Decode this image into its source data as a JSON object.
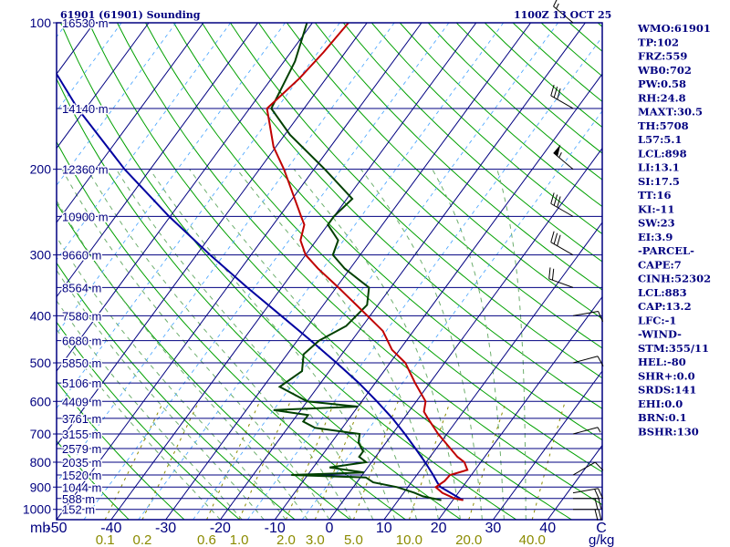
{
  "header": {
    "station": "61901 (61901) Sounding",
    "time": "1100Z 13 OCT 25"
  },
  "indices": [
    "WMO:61901",
    "TP:102",
    "FRZ:559",
    "WB0:702",
    "PW:0.58",
    "RH:24.8",
    "MAXT:30.5",
    "TH:5708",
    "L57:5.1",
    "LCL:898",
    "LI:13.1",
    "SI:17.5",
    "TT:16",
    "KI:-11",
    "SW:23",
    "EI:3.9",
    "-PARCEL-",
    "CAPE:7",
    "CINH:52302",
    "LCL:883",
    "CAP:13.2",
    "LFC:-1",
    "-WIND-",
    "STM:355/11",
    "HEL:-80",
    "SHR+:0.0",
    "SRDS:141",
    "EHI:0.0",
    "BRN:0.1",
    "BSHR:130"
  ],
  "colors": {
    "frame": "#000080",
    "isotherm": "#000080",
    "dry_adiabat": "#00a000",
    "moist_adiabat": "#6cae6c",
    "mixing_ratio": "#8b8b00",
    "temperature": "#c00000",
    "dewpoint": "#004000",
    "parcel": "#0000a0"
  },
  "chart_data": {
    "type": "skew-t log-p",
    "title": "61901 (61901) Sounding",
    "subtitle": "1100Z 13 OCT 25",
    "x_unit_label": "mb",
    "mixing_ratio_unit": "g/kg",
    "pressure_ticks": [
      100,
      200,
      300,
      400,
      500,
      600,
      700,
      800,
      900,
      1000
    ],
    "temperature_ticks": [
      -50,
      -40,
      -30,
      -20,
      -10,
      0,
      10,
      20,
      30,
      40
    ],
    "temperature_ticks_last_label": "C",
    "temperature_range": [
      -50,
      50
    ],
    "pressure_range": [
      100,
      1050
    ],
    "mixing_ratio_labels": [
      {
        "text": "0.1",
        "value": 0.1
      },
      {
        "text": "0.2",
        "value": 0.2
      },
      {
        "text": "0.6",
        "value": 0.6
      },
      {
        "text": "1.0",
        "value": 1.0
      },
      {
        "text": "2.0",
        "value": 2.0
      },
      {
        "text": "3.0",
        "value": 3.0
      },
      {
        "text": "5.0",
        "value": 5.0
      },
      {
        "text": "10.0",
        "value": 10.0
      },
      {
        "text": "20.0",
        "value": 20.0
      },
      {
        "text": "40.0",
        "value": 40.0
      }
    ],
    "height_labels": [
      {
        "p": 100,
        "text": "16530 m"
      },
      {
        "p": 150,
        "text": "14140 m"
      },
      {
        "p": 200,
        "text": "12360 m"
      },
      {
        "p": 250,
        "text": "10900 m"
      },
      {
        "p": 300,
        "text": "9660 m"
      },
      {
        "p": 350,
        "text": "8564 m"
      },
      {
        "p": 400,
        "text": "7580 m"
      },
      {
        "p": 450,
        "text": "6680 m"
      },
      {
        "p": 500,
        "text": "5850 m"
      },
      {
        "p": 550,
        "text": "5106 m"
      },
      {
        "p": 600,
        "text": "4409 m"
      },
      {
        "p": 650,
        "text": "3761 m"
      },
      {
        "p": 700,
        "text": "3155 m"
      },
      {
        "p": 750,
        "text": "2579 m"
      },
      {
        "p": 800,
        "text": "2035 m"
      },
      {
        "p": 850,
        "text": "1520 m"
      },
      {
        "p": 900,
        "text": "1044 m"
      },
      {
        "p": 950,
        "text": "588 m"
      },
      {
        "p": 1000,
        "text": "152 m"
      }
    ],
    "temperature_profile": [
      [
        958,
        21.9
      ],
      [
        950,
        20.1
      ],
      [
        925,
        17.1
      ],
      [
        900,
        15.1
      ],
      [
        875,
        15.9
      ],
      [
        850,
        16.1
      ],
      [
        830,
        18.6
      ],
      [
        800,
        17.0
      ],
      [
        780,
        15.0
      ],
      [
        750,
        12.6
      ],
      [
        700,
        8.4
      ],
      [
        650,
        4.4
      ],
      [
        630,
        2.8
      ],
      [
        600,
        1.7
      ],
      [
        550,
        -2.7
      ],
      [
        500,
        -7.2
      ],
      [
        470,
        -11.4
      ],
      [
        430,
        -15.6
      ],
      [
        400,
        -20.5
      ],
      [
        380,
        -24.0
      ],
      [
        350,
        -29.6
      ],
      [
        320,
        -35.9
      ],
      [
        300,
        -40.0
      ],
      [
        280,
        -42.9
      ],
      [
        260,
        -44.3
      ],
      [
        250,
        -46.0
      ],
      [
        200,
        -55.5
      ],
      [
        180,
        -60.4
      ],
      [
        150,
        -66.8
      ],
      [
        130,
        -64.9
      ],
      [
        115,
        -64.0
      ],
      [
        100,
        -63.4
      ]
    ],
    "dewpoint_profile": [
      [
        958,
        17.9
      ],
      [
        940,
        14.0
      ],
      [
        925,
        12.0
      ],
      [
        900,
        8.0
      ],
      [
        880,
        3.0
      ],
      [
        860,
        1.0
      ],
      [
        850,
        -13.0
      ],
      [
        840,
        0.0
      ],
      [
        820,
        -7.0
      ],
      [
        800,
        -1.0
      ],
      [
        780,
        -3.0
      ],
      [
        760,
        -3.0
      ],
      [
        730,
        -5.0
      ],
      [
        700,
        -6.0
      ],
      [
        680,
        -15.0
      ],
      [
        660,
        -18.0
      ],
      [
        640,
        -18.0
      ],
      [
        625,
        -25.0
      ],
      [
        615,
        -10.0
      ],
      [
        600,
        -20.0
      ],
      [
        560,
        -27.0
      ],
      [
        520,
        -25.0
      ],
      [
        480,
        -27.0
      ],
      [
        450,
        -26.0
      ],
      [
        420,
        -23.0
      ],
      [
        380,
        -22.0
      ],
      [
        350,
        -24.0
      ],
      [
        320,
        -31.0
      ],
      [
        300,
        -35.0
      ],
      [
        280,
        -36.0
      ],
      [
        260,
        -40.0
      ],
      [
        250,
        -40.0
      ],
      [
        230,
        -39.0
      ],
      [
        200,
        -48.0
      ],
      [
        170,
        -59.0
      ],
      [
        150,
        -66.0
      ],
      [
        120,
        -68.0
      ],
      [
        100,
        -71.0
      ]
    ],
    "parcel_profile": [
      [
        958,
        21.9
      ],
      [
        900,
        16.0
      ],
      [
        883,
        14.9
      ],
      [
        850,
        13.0
      ],
      [
        800,
        9.8
      ],
      [
        750,
        6.2
      ],
      [
        700,
        2.3
      ],
      [
        650,
        -2.1
      ],
      [
        600,
        -7.2
      ],
      [
        550,
        -13.0
      ],
      [
        500,
        -19.8
      ],
      [
        450,
        -27.5
      ],
      [
        400,
        -36.3
      ],
      [
        350,
        -46.3
      ],
      [
        300,
        -57.5
      ],
      [
        250,
        -70.2
      ],
      [
        200,
        -84.7
      ],
      [
        150,
        -101.5
      ],
      [
        125,
        -111.0
      ]
    ],
    "wind_barbs": [
      {
        "p": 1000,
        "dir": 90,
        "spd": 20
      },
      {
        "p": 950,
        "dir": 90,
        "spd": 20
      },
      {
        "p": 925,
        "dir": 80,
        "spd": 20
      },
      {
        "p": 850,
        "dir": 60,
        "spd": 10
      },
      {
        "p": 700,
        "dir": 75,
        "spd": 5
      },
      {
        "p": 500,
        "dir": 75,
        "spd": 10
      },
      {
        "p": 400,
        "dir": 80,
        "spd": 10
      },
      {
        "p": 350,
        "dir": 290,
        "spd": 20
      },
      {
        "p": 300,
        "dir": 300,
        "spd": 30
      },
      {
        "p": 250,
        "dir": 300,
        "spd": 30
      },
      {
        "p": 200,
        "dir": 310,
        "spd": 55
      },
      {
        "p": 150,
        "dir": 300,
        "spd": 30
      },
      {
        "p": 100,
        "dir": 310,
        "spd": 15
      }
    ]
  }
}
